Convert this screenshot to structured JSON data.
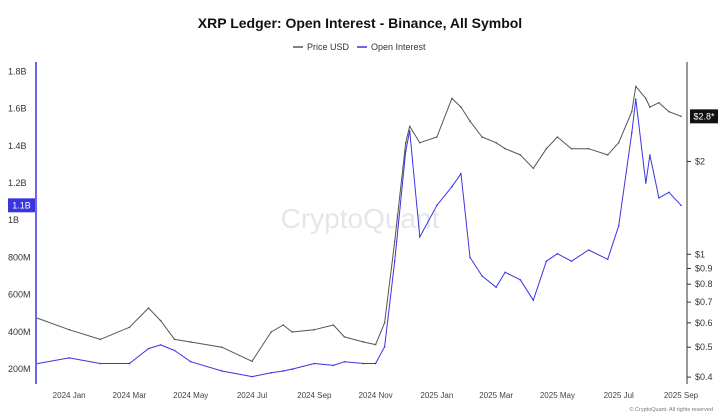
{
  "chart_data": {
    "type": "line",
    "title": "XRP Ledger: Open Interest - Binance, All Symbol",
    "legend": {
      "placement": "top-center"
    },
    "watermark": "CryptoQuant",
    "credit": "© CryptoQuant. All rights reserved",
    "x": [
      "2023-12-01",
      "2024-01-01",
      "2024-02-01",
      "2024-03-01",
      "2024-03-20",
      "2024-04-01",
      "2024-04-15",
      "2024-05-01",
      "2024-06-01",
      "2024-07-01",
      "2024-07-20",
      "2024-08-01",
      "2024-08-10",
      "2024-09-01",
      "2024-09-20",
      "2024-10-01",
      "2024-10-20",
      "2024-11-01",
      "2024-11-10",
      "2024-11-20",
      "2024-12-01",
      "2024-12-05",
      "2024-12-15",
      "2025-01-01",
      "2025-01-16",
      "2025-01-25",
      "2025-02-03",
      "2025-02-15",
      "2025-03-01",
      "2025-03-10",
      "2025-03-25",
      "2025-04-07",
      "2025-04-20",
      "2025-05-01",
      "2025-05-15",
      "2025-06-01",
      "2025-06-20",
      "2025-07-01",
      "2025-07-14",
      "2025-07-18",
      "2025-07-28",
      "2025-08-01",
      "2025-08-10",
      "2025-08-20",
      "2025-09-01"
    ],
    "x_ticks": [
      "2024 Jan",
      "2024 Mar",
      "2024 May",
      "2024 Jul",
      "2024 Sep",
      "2024 Nov",
      "2025 Jan",
      "2025 Mar",
      "2025 May",
      "2025 Jul",
      "2025 Sep"
    ],
    "series": [
      {
        "name": "Open Interest",
        "axis": "left",
        "color": "#3a34e0",
        "values": [
          230000000,
          260000000,
          230000000,
          230000000,
          310000000,
          330000000,
          300000000,
          240000000,
          190000000,
          160000000,
          180000000,
          190000000,
          200000000,
          230000000,
          220000000,
          240000000,
          230000000,
          230000000,
          320000000,
          780000000,
          1370000000,
          1480000000,
          910000000,
          1080000000,
          1180000000,
          1250000000,
          800000000,
          700000000,
          640000000,
          720000000,
          680000000,
          570000000,
          780000000,
          820000000,
          780000000,
          840000000,
          790000000,
          970000000,
          1470000000,
          1650000000,
          1200000000,
          1350000000,
          1120000000,
          1150000000,
          1080000000
        ]
      },
      {
        "name": "Price USD",
        "axis": "right",
        "color": "#555555",
        "values": [
          0.62,
          0.57,
          0.53,
          0.58,
          0.67,
          0.61,
          0.53,
          0.52,
          0.5,
          0.45,
          0.56,
          0.59,
          0.56,
          0.57,
          0.59,
          0.54,
          0.52,
          0.51,
          0.6,
          1.1,
          2.3,
          2.6,
          2.3,
          2.4,
          3.2,
          3.0,
          2.7,
          2.4,
          2.3,
          2.2,
          2.1,
          1.9,
          2.2,
          2.4,
          2.2,
          2.2,
          2.1,
          2.3,
          2.9,
          3.5,
          3.2,
          3.0,
          3.1,
          2.9,
          2.8
        ]
      }
    ],
    "left_axis": {
      "ticks": [
        "200M",
        "400M",
        "600M",
        "800M",
        "1B",
        "1.2B",
        "1.4B",
        "1.6B",
        "1.8B"
      ],
      "tick_values": [
        200000000,
        400000000,
        600000000,
        800000000,
        1000000000,
        1200000000,
        1400000000,
        1600000000,
        1800000000
      ],
      "ylim": [
        120000000,
        1850000000
      ],
      "current_badge": "1.1B",
      "current_value": 1080000000
    },
    "right_axis": {
      "scale": "log",
      "ticks": [
        "$0.4",
        "$0.5",
        "$0.6",
        "$0.7",
        "$0.8",
        "$0.9",
        "$1",
        "$2"
      ],
      "tick_values": [
        0.4,
        0.5,
        0.6,
        0.7,
        0.8,
        0.9,
        1,
        2
      ],
      "ylim": [
        0.38,
        4.2
      ],
      "current_badge": "$2.8*",
      "current_value": 2.8
    },
    "grid": false
  }
}
